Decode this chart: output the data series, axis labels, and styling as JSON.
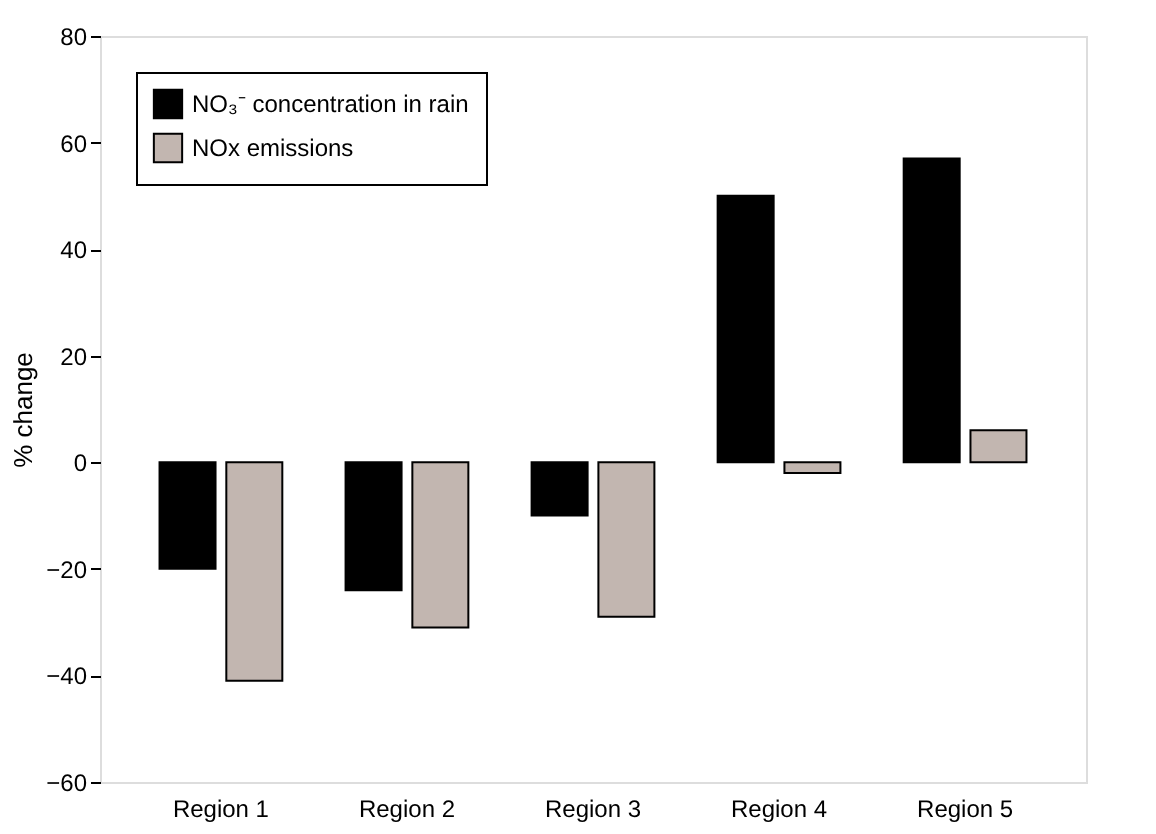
{
  "chart_data": {
    "type": "bar",
    "ylabel": "% change",
    "categories": [
      "Region 1",
      "Region 2",
      "Region 3",
      "Region 4",
      "Region 5"
    ],
    "series": [
      {
        "name": "NO₃⁻ concentration in rain",
        "color": "#000000",
        "values": [
          -20,
          -24,
          -10,
          50,
          57
        ]
      },
      {
        "name": "NOx emissions",
        "color": "#c2b6b0",
        "values": [
          -41,
          -31,
          -29,
          -2,
          6
        ]
      }
    ],
    "ylim": [
      -60,
      80
    ],
    "yticks": [
      -60,
      -40,
      -20,
      0,
      20,
      40,
      60,
      80
    ],
    "grid": false,
    "legend": "top left"
  }
}
